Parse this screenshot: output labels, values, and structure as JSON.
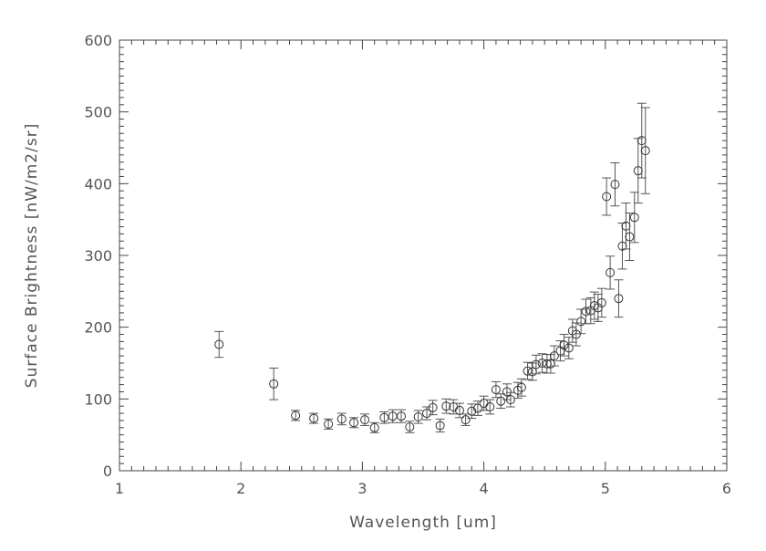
{
  "chart_data": {
    "type": "scatter",
    "title": "",
    "xlabel": "Wavelength [um]",
    "ylabel": "Surface Brightness [nW/m2/sr]",
    "xlim": [
      1,
      6
    ],
    "ylim": [
      0,
      600
    ],
    "x_ticks": [
      "1",
      "2",
      "3",
      "4",
      "5",
      "6"
    ],
    "y_ticks": [
      "0",
      "100",
      "200",
      "300",
      "400",
      "500",
      "600"
    ],
    "grid": false,
    "marker": "open-circle",
    "error_bars": true,
    "colors": {
      "axis": "#444444",
      "marker": "#333333",
      "errorbar": "#555555"
    },
    "x": [
      1.82,
      2.27,
      2.45,
      2.6,
      2.72,
      2.83,
      2.93,
      3.02,
      3.1,
      3.18,
      3.25,
      3.32,
      3.39,
      3.46,
      3.53,
      3.58,
      3.64,
      3.69,
      3.75,
      3.8,
      3.85,
      3.9,
      3.95,
      4.0,
      4.05,
      4.1,
      4.14,
      4.19,
      4.22,
      4.28,
      4.31,
      4.36,
      4.4,
      4.43,
      4.48,
      4.52,
      4.55,
      4.58,
      4.63,
      4.66,
      4.7,
      4.73,
      4.76,
      4.8,
      4.84,
      4.88,
      4.91,
      4.94,
      4.97,
      5.01,
      5.04,
      5.08,
      5.11,
      5.14,
      5.17,
      5.2,
      5.24,
      5.27,
      5.3,
      5.33
    ],
    "y": [
      176,
      121,
      77,
      73,
      65,
      72,
      67,
      71,
      60,
      74,
      76,
      76,
      61,
      75,
      80,
      88,
      63,
      90,
      89,
      84,
      71,
      83,
      87,
      94,
      89,
      113,
      97,
      110,
      99,
      112,
      116,
      139,
      138,
      148,
      150,
      149,
      149,
      160,
      167,
      175,
      171,
      195,
      190,
      208,
      222,
      223,
      230,
      227,
      234,
      382,
      276,
      399,
      240,
      313,
      341,
      326,
      353,
      418,
      460,
      446
    ],
    "yerr": [
      18,
      22,
      7,
      7,
      7,
      8,
      7,
      8,
      7,
      8,
      9,
      9,
      8,
      9,
      9,
      10,
      9,
      10,
      10,
      10,
      8,
      10,
      10,
      10,
      10,
      11,
      10,
      11,
      10,
      11,
      12,
      12,
      12,
      13,
      13,
      13,
      13,
      14,
      14,
      15,
      15,
      16,
      16,
      17,
      17,
      18,
      19,
      19,
      20,
      26,
      23,
      30,
      26,
      32,
      32,
      33,
      35,
      45,
      52,
      60
    ]
  }
}
